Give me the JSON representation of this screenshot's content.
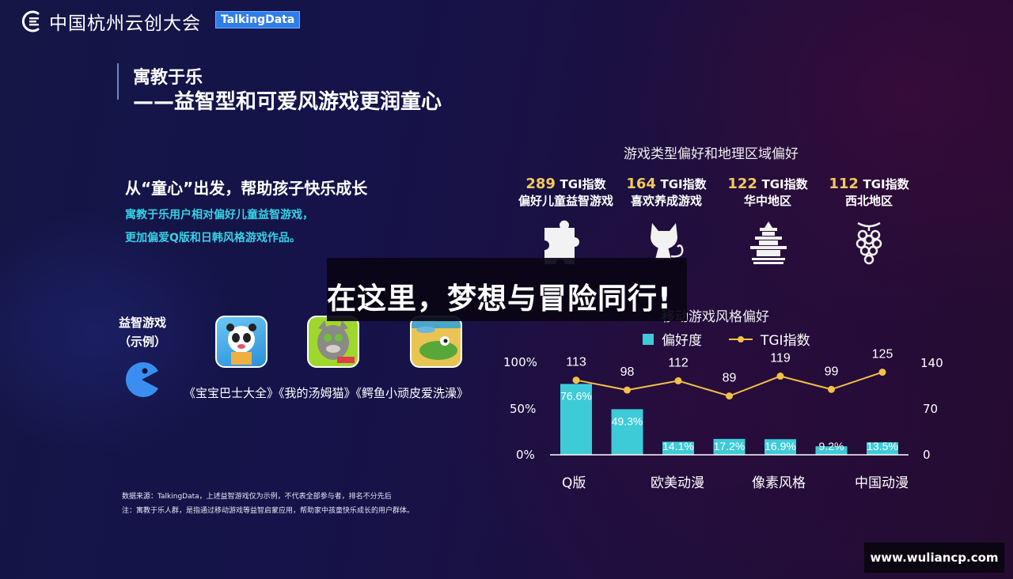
{
  "header": {
    "logo_text": "中国杭州云创大会",
    "badge": "TalkingData",
    "logo_icon": "ring-lines-icon"
  },
  "title": {
    "line1": "寓教于乐",
    "line2": "——益智型和可爱风游戏更润童心"
  },
  "left": {
    "heading": "从“童心”出发，帮助孩子快乐成长",
    "desc_lines": [
      "寓教于乐用户相对偏好儿童益智游戏，",
      "更加偏爱Q版和日韩风格游戏作品。"
    ],
    "example_label_1": "益智游戏",
    "example_label_2": "（示例）",
    "example_icon": "pacman-icon",
    "apps": [
      "宝宝巴士大全",
      "我的汤姆猫",
      "鳄鱼小顽皮爱洗澡"
    ],
    "app_names_text": "《宝宝巴士大全》《我的汤姆猫》《鳄鱼小顽皮爱洗澡》",
    "notes": [
      "数据来源：TalkingData，上述益智游戏仅为示例，不代表全部参与者，排名不分先后",
      "注：寓教于乐人群，是指通过移动游戏等益智启蒙应用，帮助家中孩童快乐成长的用户群体。"
    ]
  },
  "right": {
    "heading": "游戏类型偏好和地理区域偏好",
    "tgi_unit": "TGI指数",
    "tgi_cards": [
      {
        "value": "289",
        "category": "偏好儿童益智游戏",
        "icon": "puzzle-icon"
      },
      {
        "value": "164",
        "category": "喜欢养成游戏",
        "icon": "cat-icon"
      },
      {
        "value": "122",
        "category": "华中地区",
        "icon": "pagoda-icon"
      },
      {
        "value": "112",
        "category": "西北地区",
        "icon": "grapes-icon"
      }
    ]
  },
  "overlay": {
    "caption": "在这里，梦想与冒险同行!"
  },
  "chart": {
    "title": "移动游戏风格偏好",
    "legend_bar": "偏好度",
    "legend_line": "TGI指数",
    "left_ticks": [
      "100%",
      "50%",
      "0%"
    ],
    "right_ticks": [
      "140",
      "70",
      "0"
    ],
    "x_labels_shown": [
      "Q版",
      "欧美动漫",
      "像素风格",
      "中国动漫"
    ],
    "bar_color": "#3ecbd8",
    "line_color": "#f2c146"
  },
  "chart_data": {
    "type": "bar",
    "title": "移动游戏风格偏好",
    "categories": [
      "Q版",
      "",
      "欧美动漫",
      "",
      "像素风格",
      "",
      "中国动漫"
    ],
    "series": [
      {
        "name": "偏好度",
        "type": "bar",
        "axis": "left",
        "unit": "%",
        "values": [
          76.6,
          49.3,
          14.1,
          17.2,
          16.9,
          9.2,
          13.5
        ],
        "labels": [
          "76.6%",
          "49.3%",
          "14.1%",
          "17.2%",
          "16.9%",
          "9.2%",
          "13.5%"
        ]
      },
      {
        "name": "TGI指数",
        "type": "line",
        "axis": "right",
        "values": [
          113,
          98,
          112,
          89,
          119,
          99,
          125
        ]
      }
    ],
    "ylim_left": [
      0,
      100
    ],
    "ylim_right": [
      0,
      140
    ],
    "left_ticks": [
      "0%",
      "50%",
      "100%"
    ],
    "right_ticks": [
      "0",
      "70",
      "140"
    ],
    "legend_position": "top",
    "grid": false
  },
  "watermark": "www.wuliancp.com"
}
